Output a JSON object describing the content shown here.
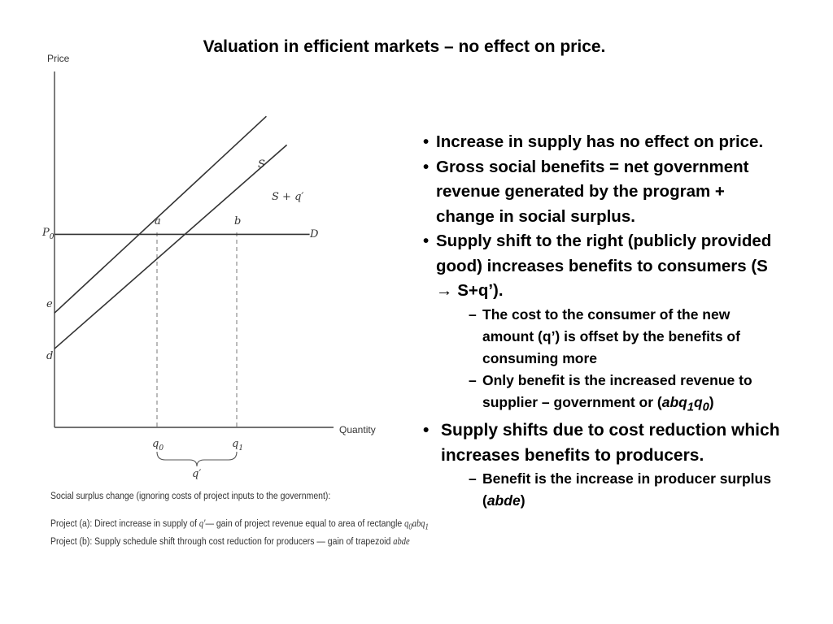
{
  "title": "Valuation in efficient markets – no effect on price.",
  "chart_data": {
    "type": "line",
    "xlabel": "Quantity",
    "ylabel": "Price",
    "series": [
      {
        "name": "S",
        "x": [
          0,
          9.3
        ],
        "y": [
          3.2,
          8.7
        ]
      },
      {
        "name": "S + q′",
        "x": [
          0,
          10.2
        ],
        "y": [
          2.2,
          7.9
        ]
      },
      {
        "name": "D",
        "x": [
          0,
          11.2
        ],
        "y": [
          5.4,
          5.4
        ]
      }
    ],
    "y_tick_labels": {
      "p0": "P",
      "p0_sub": "0",
      "e": "e",
      "d": "d"
    },
    "x_tick_labels": {
      "q0": "q",
      "q0_sub": "0",
      "q1": "q",
      "q1_sub": "1",
      "brace": "q′"
    },
    "points": {
      "a": "a",
      "b": "b"
    },
    "curve_labels": {
      "S": "S",
      "Sq": "S + q′",
      "D": "D"
    }
  },
  "caption": {
    "heading": "Social surplus change (ignoring costs of project inputs to the government):",
    "line_a_prefix": "Project (a): Direct increase in supply of ",
    "line_a_q": "q′",
    "line_a_mid": "— gain of project revenue equal to area of rectangle ",
    "line_a_rect": "q",
    "line_a_rect_sub0": "0",
    "line_a_rect_ab": "abq",
    "line_a_rect_sub1": "1",
    "line_b_prefix": "Project (b): Supply schedule shift through cost reduction for producers — gain of trapezoid ",
    "line_b_trap": "abde"
  },
  "bullets": {
    "b1": "Increase in supply has no effect on price.",
    "b2": "Gross social benefits = net government revenue generated by the program + change in social surplus.",
    "b3": "Supply shift to the right (publicly provided good) increases benefits to consumers (S → S+q’).",
    "b3_sub1": "The cost to the consumer of the new amount (q’) is offset by the benefits of consuming more",
    "b3_sub2_pre": "Only benefit is the increased revenue to supplier – government or (",
    "b3_sub2_abq": "abq",
    "b3_sub2_s1": "1",
    "b3_sub2_q": "q",
    "b3_sub2_s0": "0",
    "b3_sub2_post": ")",
    "b4": "Supply shifts due to cost reduction which increases benefits to producers.",
    "b4_sub1_pre": "Benefit is the increase in producer surplus (",
    "b4_sub1_abde": "abde",
    "b4_sub1_post": ")"
  },
  "glyphs": {
    "dot": "•",
    "dash": "–"
  }
}
